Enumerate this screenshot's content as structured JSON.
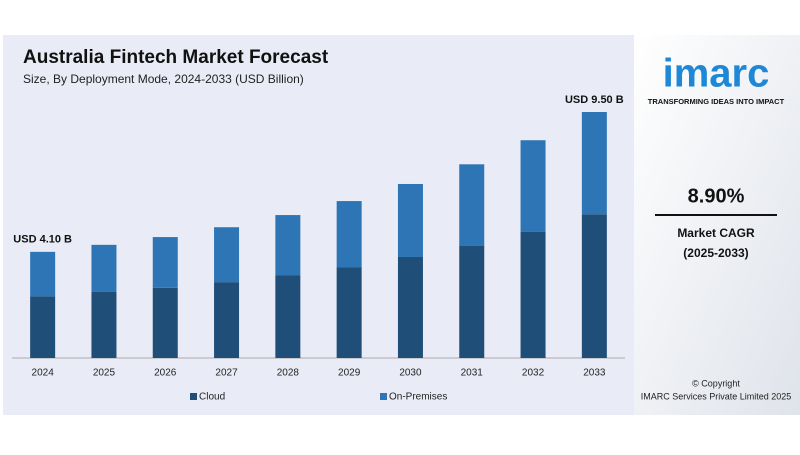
{
  "chart_data": {
    "type": "stacked-bar",
    "title": "Australia Fintech Market Forecast",
    "subtitle": "Size, By Deployment Mode, 2024-2033 (USD Billion)",
    "categories": [
      "2024",
      "2025",
      "2026",
      "2027",
      "2028",
      "2029",
      "2030",
      "2031",
      "2032",
      "2033"
    ],
    "series": [
      {
        "name": "Cloud",
        "color": "#1f4e79",
        "values": [
          2.38,
          2.55,
          2.71,
          2.93,
          3.2,
          3.51,
          3.9,
          4.34,
          4.88,
          5.55
        ]
      },
      {
        "name": "On-Premises",
        "color": "#2e75b6",
        "values": [
          1.72,
          1.82,
          1.96,
          2.12,
          2.32,
          2.55,
          2.82,
          3.14,
          3.53,
          3.95
        ]
      }
    ],
    "annotations": [
      {
        "x": "2024",
        "text": "USD 4.10 B"
      },
      {
        "x": "2033",
        "text": "USD 9.50 B"
      }
    ],
    "legend": "bottom"
  },
  "sidebar": {
    "logo": "imarc",
    "tagline": "TRANSFORMING IDEAS INTO IMPACT",
    "cagr": "8.90%",
    "cagr_label": "Market CAGR",
    "cagr_period": "(2025-2033)",
    "copyright": "© Copyright",
    "company": "IMARC Services Private Limited 2025"
  }
}
